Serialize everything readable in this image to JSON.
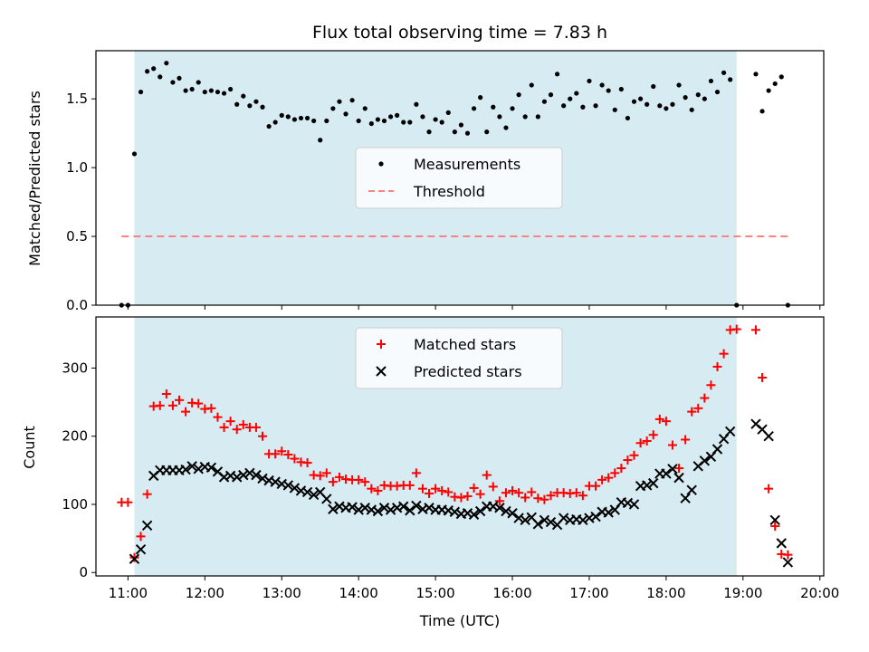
{
  "chart_data": [
    {
      "type": "scatter",
      "title": "Flux total observing time = 7.83 h",
      "xlabel": "",
      "ylabel": "Matched/Predicted stars",
      "xlim": [
        "10:35",
        "20:03"
      ],
      "ylim": [
        0,
        1.85
      ],
      "y_ticks": [
        0.0,
        0.5,
        1.0,
        1.5
      ],
      "y_tick_labels": [
        "0.0",
        "0.5",
        "1.0",
        "1.5"
      ],
      "grid": false,
      "legend_position": "center",
      "shaded_interval": [
        "11:05",
        "18:55"
      ],
      "shade_color": "#add8e6",
      "series": [
        {
          "name": "Measurements",
          "color": "#000000",
          "marker": "dot",
          "x": [
            "10:55",
            "11:00",
            "11:05",
            "11:10",
            "11:15",
            "11:20",
            "11:25",
            "11:30",
            "11:35",
            "11:40",
            "11:45",
            "11:50",
            "11:55",
            "12:00",
            "12:05",
            "12:10",
            "12:15",
            "12:20",
            "12:25",
            "12:30",
            "12:35",
            "12:40",
            "12:45",
            "12:50",
            "12:55",
            "13:00",
            "13:05",
            "13:10",
            "13:15",
            "13:20",
            "13:25",
            "13:30",
            "13:35",
            "13:40",
            "13:45",
            "13:50",
            "13:55",
            "14:00",
            "14:05",
            "14:10",
            "14:15",
            "14:20",
            "14:25",
            "14:30",
            "14:35",
            "14:40",
            "14:45",
            "14:50",
            "14:55",
            "15:00",
            "15:05",
            "15:10",
            "15:15",
            "15:20",
            "15:25",
            "15:30",
            "15:35",
            "15:40",
            "15:45",
            "15:50",
            "15:55",
            "16:00",
            "16:05",
            "16:10",
            "16:15",
            "16:20",
            "16:25",
            "16:30",
            "16:35",
            "16:40",
            "16:45",
            "16:50",
            "16:55",
            "17:00",
            "17:05",
            "17:10",
            "17:15",
            "17:20",
            "17:25",
            "17:30",
            "17:35",
            "17:40",
            "17:45",
            "17:50",
            "17:55",
            "18:00",
            "18:05",
            "18:10",
            "18:15",
            "18:20",
            "18:25",
            "18:30",
            "18:35",
            "18:40",
            "18:45",
            "18:50",
            "18:55",
            "19:10",
            "19:15",
            "19:20",
            "19:25",
            "19:30",
            "19:35"
          ],
          "y": [
            0.0,
            0.0,
            1.1,
            1.55,
            1.7,
            1.72,
            1.66,
            1.76,
            1.62,
            1.65,
            1.56,
            1.57,
            1.62,
            1.55,
            1.56,
            1.55,
            1.54,
            1.57,
            1.46,
            1.52,
            1.45,
            1.48,
            1.44,
            1.3,
            1.33,
            1.38,
            1.37,
            1.35,
            1.36,
            1.36,
            1.34,
            1.2,
            1.34,
            1.43,
            1.48,
            1.39,
            1.49,
            1.34,
            1.43,
            1.32,
            1.35,
            1.34,
            1.37,
            1.38,
            1.33,
            1.33,
            1.46,
            1.37,
            1.26,
            1.35,
            1.33,
            1.4,
            1.26,
            1.31,
            1.25,
            1.43,
            1.51,
            1.26,
            1.44,
            1.37,
            1.29,
            1.43,
            1.53,
            1.37,
            1.6,
            1.37,
            1.48,
            1.53,
            1.68,
            1.45,
            1.5,
            1.54,
            1.44,
            1.63,
            1.45,
            1.6,
            1.56,
            1.42,
            1.57,
            1.36,
            1.48,
            1.5,
            1.46,
            1.59,
            1.45,
            1.43,
            1.46,
            1.6,
            1.51,
            1.42,
            1.53,
            1.5,
            1.63,
            1.55,
            1.69,
            1.64,
            0.0,
            1.68,
            1.41,
            1.56,
            1.61,
            1.66,
            0.0
          ]
        },
        {
          "name": "Threshold",
          "color": "#ff8080",
          "style": "dashed",
          "x": [
            "10:55",
            "19:35"
          ],
          "y": [
            0.5,
            0.5
          ]
        }
      ]
    },
    {
      "type": "scatter",
      "title": "",
      "xlabel": "Time (UTC)",
      "ylabel": "Count",
      "xlim": [
        "10:35",
        "20:03"
      ],
      "ylim": [
        -5,
        375
      ],
      "x_ticks": [
        "11:00",
        "12:00",
        "13:00",
        "14:00",
        "15:00",
        "16:00",
        "17:00",
        "18:00",
        "19:00",
        "20:00"
      ],
      "y_ticks": [
        0,
        100,
        200,
        300
      ],
      "grid": false,
      "legend_position": "upper center",
      "shaded_interval": [
        "11:05",
        "18:55"
      ],
      "shade_color": "#add8e6",
      "series": [
        {
          "name": "Matched stars",
          "color": "#ff0000",
          "marker": "plus",
          "x": [
            "10:55",
            "11:00",
            "11:05",
            "11:10",
            "11:15",
            "11:20",
            "11:25",
            "11:30",
            "11:35",
            "11:40",
            "11:45",
            "11:50",
            "11:55",
            "12:00",
            "12:05",
            "12:10",
            "12:15",
            "12:20",
            "12:25",
            "12:30",
            "12:35",
            "12:40",
            "12:45",
            "12:50",
            "12:55",
            "13:00",
            "13:05",
            "13:10",
            "13:15",
            "13:20",
            "13:25",
            "13:30",
            "13:35",
            "13:40",
            "13:45",
            "13:50",
            "13:55",
            "14:00",
            "14:05",
            "14:10",
            "14:15",
            "14:20",
            "14:25",
            "14:30",
            "14:35",
            "14:40",
            "14:45",
            "14:50",
            "14:55",
            "15:00",
            "15:05",
            "15:10",
            "15:15",
            "15:20",
            "15:25",
            "15:30",
            "15:35",
            "15:40",
            "15:45",
            "15:50",
            "15:55",
            "16:00",
            "16:05",
            "16:10",
            "16:15",
            "16:20",
            "16:25",
            "16:30",
            "16:35",
            "16:40",
            "16:45",
            "16:50",
            "16:55",
            "17:00",
            "17:05",
            "17:10",
            "17:15",
            "17:20",
            "17:25",
            "17:30",
            "17:35",
            "17:40",
            "17:45",
            "17:50",
            "17:55",
            "18:00",
            "18:05",
            "18:10",
            "18:15",
            "18:20",
            "18:25",
            "18:30",
            "18:35",
            "18:40",
            "18:45",
            "18:50",
            "18:55",
            "19:10",
            "19:15",
            "19:20",
            "19:25",
            "19:30",
            "19:35"
          ],
          "y": [
            103,
            103,
            22,
            53,
            115,
            244,
            245,
            262,
            245,
            253,
            236,
            249,
            248,
            240,
            241,
            228,
            213,
            222,
            210,
            217,
            213,
            213,
            200,
            174,
            174,
            178,
            173,
            167,
            162,
            161,
            143,
            142,
            146,
            133,
            140,
            137,
            136,
            136,
            133,
            123,
            120,
            128,
            127,
            127,
            128,
            128,
            146,
            123,
            116,
            123,
            120,
            118,
            111,
            110,
            112,
            124,
            115,
            143,
            126,
            105,
            117,
            120,
            117,
            110,
            118,
            109,
            107,
            113,
            117,
            117,
            116,
            117,
            113,
            127,
            127,
            136,
            139,
            146,
            153,
            165,
            172,
            190,
            193,
            202,
            225,
            222,
            187,
            153,
            195,
            236,
            241,
            256,
            275,
            302,
            321,
            356,
            357,
            356,
            286,
            123,
            68,
            27,
            26
          ]
        },
        {
          "name": "Predicted stars",
          "color": "#000000",
          "marker": "x",
          "x": [
            "11:05",
            "11:10",
            "11:15",
            "11:20",
            "11:25",
            "11:30",
            "11:35",
            "11:40",
            "11:45",
            "11:50",
            "11:55",
            "12:00",
            "12:05",
            "12:10",
            "12:15",
            "12:20",
            "12:25",
            "12:30",
            "12:35",
            "12:40",
            "12:45",
            "12:50",
            "12:55",
            "13:00",
            "13:05",
            "13:10",
            "13:15",
            "13:20",
            "13:25",
            "13:30",
            "13:35",
            "13:40",
            "13:45",
            "13:50",
            "13:55",
            "14:00",
            "14:05",
            "14:10",
            "14:15",
            "14:20",
            "14:25",
            "14:30",
            "14:35",
            "14:40",
            "14:45",
            "14:50",
            "14:55",
            "15:00",
            "15:05",
            "15:10",
            "15:15",
            "15:20",
            "15:25",
            "15:30",
            "15:35",
            "15:40",
            "15:45",
            "15:50",
            "15:55",
            "16:00",
            "16:05",
            "16:10",
            "16:15",
            "16:20",
            "16:25",
            "16:30",
            "16:35",
            "16:40",
            "16:45",
            "16:50",
            "16:55",
            "17:00",
            "17:05",
            "17:10",
            "17:15",
            "17:20",
            "17:25",
            "17:30",
            "17:35",
            "17:40",
            "17:45",
            "17:50",
            "17:55",
            "18:00",
            "18:05",
            "18:10",
            "18:15",
            "18:20",
            "18:25",
            "18:30",
            "18:35",
            "18:40",
            "18:45",
            "18:50",
            "19:10",
            "19:15",
            "19:20",
            "19:25",
            "19:30",
            "19:35"
          ],
          "y": [
            20,
            34,
            69,
            142,
            150,
            150,
            150,
            150,
            151,
            156,
            152,
            155,
            154,
            148,
            140,
            142,
            140,
            143,
            146,
            143,
            138,
            135,
            133,
            130,
            128,
            124,
            120,
            118,
            114,
            118,
            108,
            93,
            97,
            95,
            96,
            92,
            95,
            92,
            90,
            95,
            92,
            95,
            97,
            91,
            98,
            93,
            95,
            92,
            92,
            91,
            89,
            86,
            87,
            85,
            90,
            97,
            97,
            95,
            90,
            87,
            80,
            77,
            81,
            71,
            77,
            74,
            70,
            80,
            77,
            78,
            77,
            80,
            82,
            89,
            88,
            92,
            103,
            102,
            100,
            127,
            128,
            131,
            145,
            145,
            152,
            139,
            109,
            121,
            156,
            164,
            170,
            181,
            196,
            207,
            218,
            210,
            200,
            77,
            43,
            15
          ]
        }
      ]
    }
  ]
}
